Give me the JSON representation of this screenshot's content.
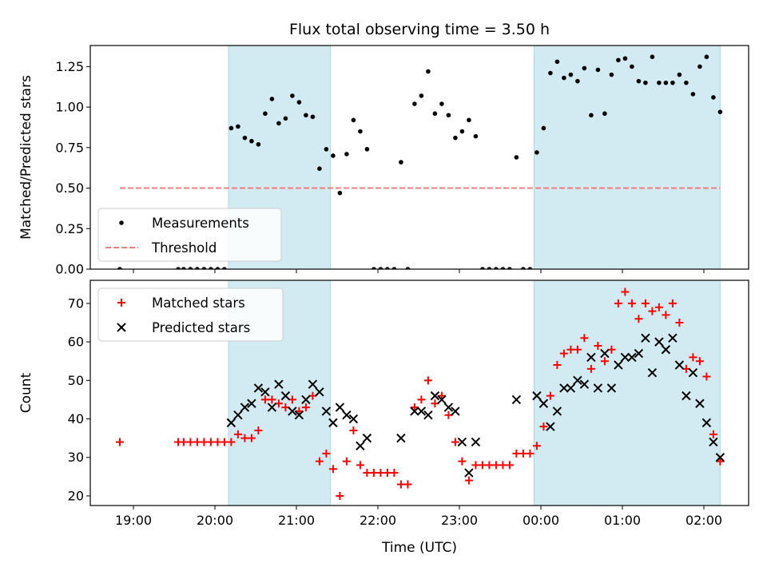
{
  "chart_data": [
    {
      "type": "scatter",
      "title": "Flux total observing time = 3.50 h",
      "xlabel": "",
      "ylabel": "Matched/Predicted stars",
      "ylim": [
        0,
        1.38
      ],
      "y_ticks": [
        "0.00",
        "0.25",
        "0.50",
        "0.75",
        "1.00",
        "1.25"
      ],
      "x_ticks": [
        "19:00",
        "20:00",
        "21:00",
        "22:00",
        "23:00",
        "00:00",
        "01:00",
        "02:00"
      ],
      "x_tick_labels_shown": false,
      "grid": false,
      "legend_position": "lower-left",
      "shaded_intervals": [
        [
          "20:10",
          "21:25"
        ],
        [
          "23:55",
          "02:12"
        ]
      ],
      "threshold": {
        "name": "Threshold",
        "value": 0.5,
        "x_range": [
          "18:50",
          "02:12"
        ],
        "color": "#f08080",
        "style": "dashed"
      },
      "series": [
        {
          "name": "Measurements",
          "color": "#000000",
          "marker": "dot",
          "points": [
            [
              "18:50",
              0
            ],
            [
              "19:33",
              0
            ],
            [
              "19:37",
              0
            ],
            [
              "19:42",
              0
            ],
            [
              "19:47",
              0
            ],
            [
              "19:52",
              0
            ],
            [
              "19:57",
              0
            ],
            [
              "20:02",
              0
            ],
            [
              "20:07",
              0
            ],
            [
              "20:12",
              0.87
            ],
            [
              "20:17",
              0.88
            ],
            [
              "20:22",
              0.81
            ],
            [
              "20:27",
              0.79
            ],
            [
              "20:32",
              0.77
            ],
            [
              "20:37",
              0.96
            ],
            [
              "20:42",
              1.05
            ],
            [
              "20:47",
              0.9
            ],
            [
              "20:52",
              0.93
            ],
            [
              "20:57",
              1.07
            ],
            [
              "21:02",
              1.03
            ],
            [
              "21:07",
              0.95
            ],
            [
              "21:12",
              0.94
            ],
            [
              "21:17",
              0.62
            ],
            [
              "21:22",
              0.74
            ],
            [
              "21:27",
              0.7
            ],
            [
              "21:32",
              0.47
            ],
            [
              "21:37",
              0.71
            ],
            [
              "21:42",
              0.92
            ],
            [
              "21:47",
              0.85
            ],
            [
              "21:52",
              0.74
            ],
            [
              "21:57",
              0
            ],
            [
              "22:02",
              0
            ],
            [
              "22:07",
              0
            ],
            [
              "22:12",
              0
            ],
            [
              "22:17",
              0.66
            ],
            [
              "22:22",
              0
            ],
            [
              "22:27",
              1.02
            ],
            [
              "22:32",
              1.07
            ],
            [
              "22:37",
              1.22
            ],
            [
              "22:42",
              0.96
            ],
            [
              "22:47",
              1.02
            ],
            [
              "22:52",
              0.95
            ],
            [
              "22:57",
              0.81
            ],
            [
              "23:02",
              0.85
            ],
            [
              "23:07",
              0.92
            ],
            [
              "23:12",
              0.82
            ],
            [
              "23:17",
              0
            ],
            [
              "23:22",
              0
            ],
            [
              "23:27",
              0
            ],
            [
              "23:32",
              0
            ],
            [
              "23:37",
              0
            ],
            [
              "23:42",
              0.69
            ],
            [
              "23:47",
              0
            ],
            [
              "23:52",
              0
            ],
            [
              "23:57",
              0.72
            ],
            [
              "00:02",
              0.87
            ],
            [
              "00:07",
              1.21
            ],
            [
              "00:12",
              1.28
            ],
            [
              "00:17",
              1.18
            ],
            [
              "00:22",
              1.2
            ],
            [
              "00:27",
              1.16
            ],
            [
              "00:32",
              1.24
            ],
            [
              "00:37",
              0.95
            ],
            [
              "00:42",
              1.23
            ],
            [
              "00:47",
              0.96
            ],
            [
              "00:52",
              1.2
            ],
            [
              "00:57",
              1.29
            ],
            [
              "01:02",
              1.3
            ],
            [
              "01:07",
              1.25
            ],
            [
              "01:12",
              1.16
            ],
            [
              "01:17",
              1.15
            ],
            [
              "01:22",
              1.31
            ],
            [
              "01:27",
              1.15
            ],
            [
              "01:32",
              1.15
            ],
            [
              "01:37",
              1.15
            ],
            [
              "01:42",
              1.2
            ],
            [
              "01:47",
              1.15
            ],
            [
              "01:52",
              1.08
            ],
            [
              "01:57",
              1.25
            ],
            [
              "02:02",
              1.31
            ],
            [
              "02:07",
              1.06
            ],
            [
              "02:12",
              0.97
            ]
          ]
        }
      ]
    },
    {
      "type": "scatter",
      "title": "",
      "xlabel": "Time (UTC)",
      "ylabel": "Count",
      "ylim": [
        17.5,
        76
      ],
      "y_ticks": [
        "20",
        "30",
        "40",
        "50",
        "60",
        "70"
      ],
      "x_ticks": [
        "19:00",
        "20:00",
        "21:00",
        "22:00",
        "23:00",
        "00:00",
        "01:00",
        "02:00"
      ],
      "grid": false,
      "legend_position": "upper-left",
      "shaded_intervals": [
        [
          "20:10",
          "21:25"
        ],
        [
          "23:55",
          "02:12"
        ]
      ],
      "series": [
        {
          "name": "Matched stars",
          "color": "#ff0000",
          "marker": "plus",
          "points": [
            [
              "18:50",
              34
            ],
            [
              "19:33",
              34
            ],
            [
              "19:37",
              34
            ],
            [
              "19:42",
              34
            ],
            [
              "19:47",
              34
            ],
            [
              "19:52",
              34
            ],
            [
              "19:57",
              34
            ],
            [
              "20:02",
              34
            ],
            [
              "20:07",
              34
            ],
            [
              "20:12",
              34
            ],
            [
              "20:17",
              36
            ],
            [
              "20:22",
              35
            ],
            [
              "20:27",
              35
            ],
            [
              "20:32",
              37
            ],
            [
              "20:37",
              45
            ],
            [
              "20:42",
              45
            ],
            [
              "20:47",
              44
            ],
            [
              "20:52",
              43
            ],
            [
              "20:57",
              45
            ],
            [
              "21:02",
              42
            ],
            [
              "21:07",
              43
            ],
            [
              "21:12",
              46
            ],
            [
              "21:17",
              29
            ],
            [
              "21:22",
              31
            ],
            [
              "21:27",
              27
            ],
            [
              "21:32",
              20
            ],
            [
              "21:37",
              29
            ],
            [
              "21:42",
              37
            ],
            [
              "21:47",
              28
            ],
            [
              "21:52",
              26
            ],
            [
              "21:57",
              26
            ],
            [
              "22:02",
              26
            ],
            [
              "22:07",
              26
            ],
            [
              "22:12",
              26
            ],
            [
              "22:17",
              23
            ],
            [
              "22:22",
              23
            ],
            [
              "22:27",
              43
            ],
            [
              "22:32",
              45
            ],
            [
              "22:37",
              50
            ],
            [
              "22:42",
              44
            ],
            [
              "22:47",
              46
            ],
            [
              "22:52",
              41
            ],
            [
              "22:57",
              34
            ],
            [
              "23:02",
              29
            ],
            [
              "23:07",
              24
            ],
            [
              "23:12",
              28
            ],
            [
              "23:17",
              28
            ],
            [
              "23:22",
              28
            ],
            [
              "23:27",
              28
            ],
            [
              "23:32",
              28
            ],
            [
              "23:37",
              28
            ],
            [
              "23:42",
              31
            ],
            [
              "23:47",
              31
            ],
            [
              "23:52",
              31
            ],
            [
              "23:57",
              33
            ],
            [
              "00:02",
              38
            ],
            [
              "00:07",
              46
            ],
            [
              "00:12",
              54
            ],
            [
              "00:17",
              57
            ],
            [
              "00:22",
              58
            ],
            [
              "00:27",
              58
            ],
            [
              "00:32",
              61
            ],
            [
              "00:37",
              53
            ],
            [
              "00:42",
              59
            ],
            [
              "00:47",
              55
            ],
            [
              "00:52",
              58
            ],
            [
              "00:57",
              70
            ],
            [
              "01:02",
              73
            ],
            [
              "01:07",
              70
            ],
            [
              "01:12",
              66
            ],
            [
              "01:17",
              70
            ],
            [
              "01:22",
              68
            ],
            [
              "01:27",
              69
            ],
            [
              "01:32",
              67
            ],
            [
              "01:37",
              70
            ],
            [
              "01:42",
              65
            ],
            [
              "01:47",
              53
            ],
            [
              "01:52",
              56
            ],
            [
              "01:57",
              55
            ],
            [
              "02:02",
              51
            ],
            [
              "02:07",
              36
            ],
            [
              "02:12",
              29
            ]
          ]
        },
        {
          "name": "Predicted stars",
          "color": "#000000",
          "marker": "x",
          "points": [
            [
              "20:12",
              39
            ],
            [
              "20:17",
              41
            ],
            [
              "20:22",
              43
            ],
            [
              "20:27",
              44
            ],
            [
              "20:32",
              48
            ],
            [
              "20:37",
              47
            ],
            [
              "20:42",
              43
            ],
            [
              "20:47",
              49
            ],
            [
              "20:52",
              46
            ],
            [
              "20:57",
              42
            ],
            [
              "21:02",
              41
            ],
            [
              "21:07",
              45
            ],
            [
              "21:12",
              49
            ],
            [
              "21:17",
              47
            ],
            [
              "21:22",
              42
            ],
            [
              "21:27",
              39
            ],
            [
              "21:32",
              43
            ],
            [
              "21:37",
              41
            ],
            [
              "21:42",
              40
            ],
            [
              "21:47",
              33
            ],
            [
              "21:52",
              35
            ],
            [
              "22:17",
              35
            ],
            [
              "22:27",
              42
            ],
            [
              "22:32",
              42
            ],
            [
              "22:37",
              41
            ],
            [
              "22:42",
              46
            ],
            [
              "22:47",
              45
            ],
            [
              "22:52",
              43
            ],
            [
              "22:57",
              42
            ],
            [
              "23:02",
              34
            ],
            [
              "23:07",
              26
            ],
            [
              "23:12",
              34
            ],
            [
              "23:42",
              45
            ],
            [
              "23:57",
              46
            ],
            [
              "00:02",
              44
            ],
            [
              "00:07",
              38
            ],
            [
              "00:12",
              42
            ],
            [
              "00:17",
              48
            ],
            [
              "00:22",
              48
            ],
            [
              "00:27",
              50
            ],
            [
              "00:32",
              49
            ],
            [
              "00:37",
              56
            ],
            [
              "00:42",
              48
            ],
            [
              "00:47",
              57
            ],
            [
              "00:52",
              48
            ],
            [
              "00:57",
              54
            ],
            [
              "01:02",
              56
            ],
            [
              "01:07",
              56
            ],
            [
              "01:12",
              57
            ],
            [
              "01:17",
              61
            ],
            [
              "01:22",
              52
            ],
            [
              "01:27",
              60
            ],
            [
              "01:32",
              58
            ],
            [
              "01:37",
              61
            ],
            [
              "01:42",
              54
            ],
            [
              "01:47",
              46
            ],
            [
              "01:52",
              52
            ],
            [
              "01:57",
              44
            ],
            [
              "02:02",
              39
            ],
            [
              "02:07",
              34
            ],
            [
              "02:12",
              30
            ]
          ]
        }
      ]
    }
  ]
}
